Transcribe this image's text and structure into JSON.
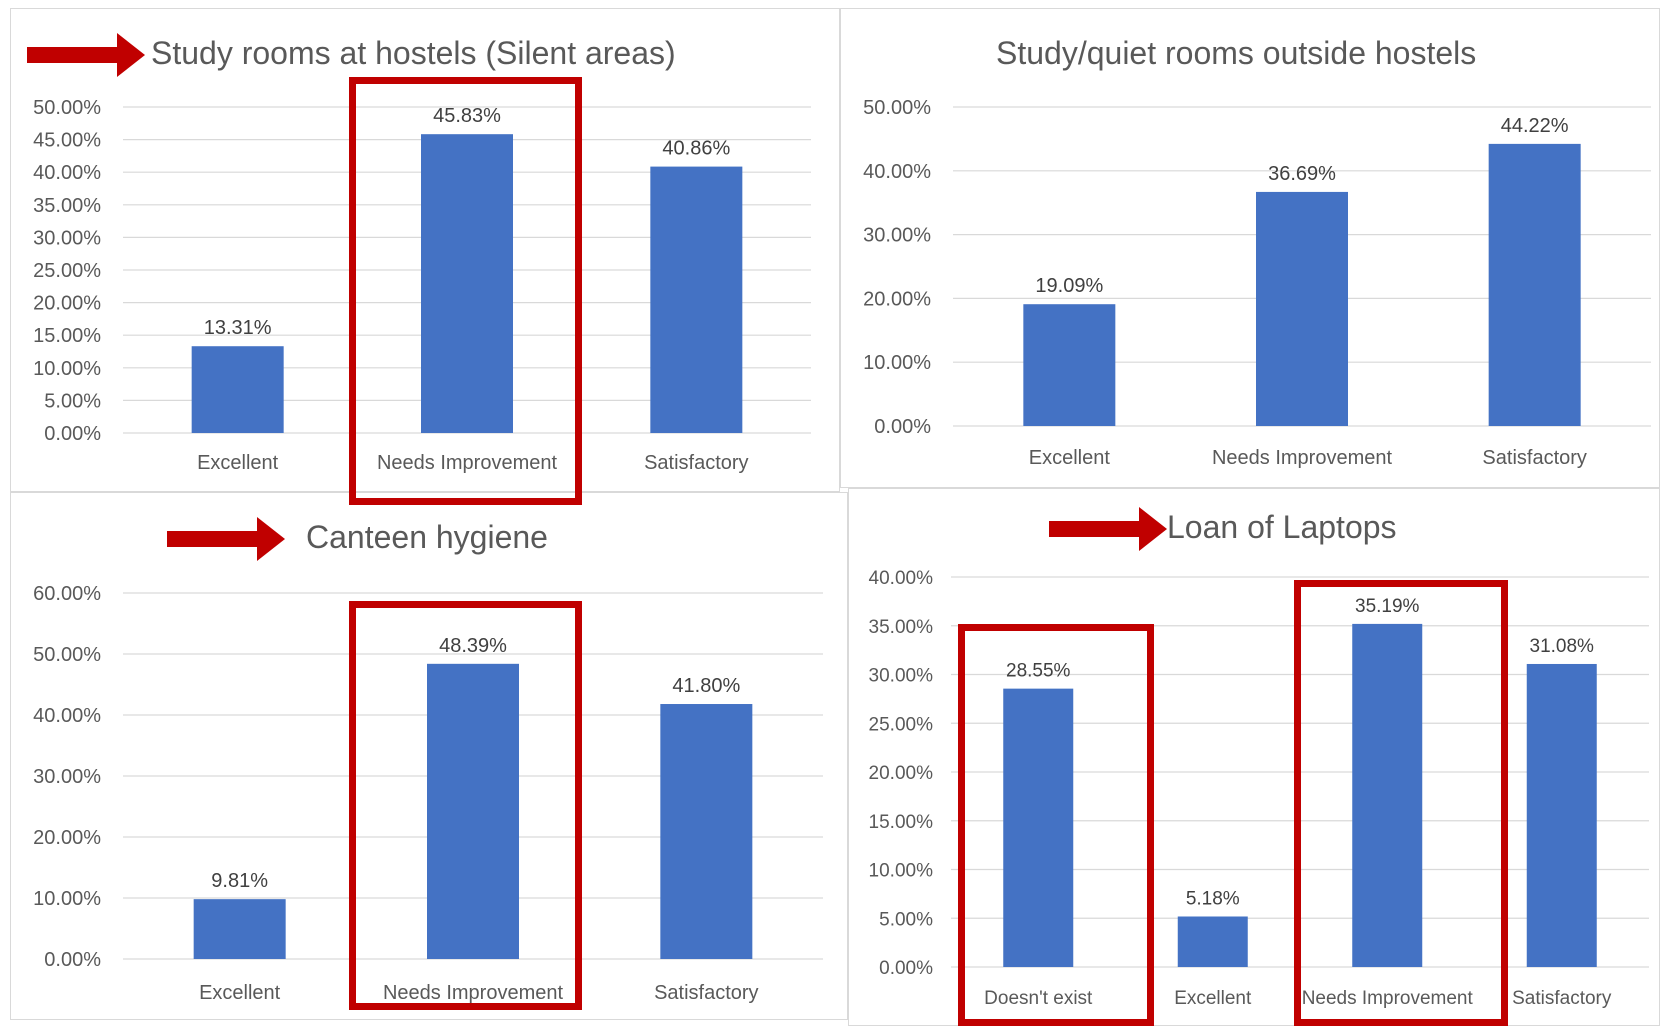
{
  "colors": {
    "bar": "#4472c4",
    "grid": "#d9d9d9",
    "text": "#595959",
    "highlight": "#c00000"
  },
  "chart_data": [
    {
      "type": "bar",
      "title": "Study rooms at hostels (Silent areas)",
      "categories": [
        "Excellent",
        "Needs Improvement",
        "Satisfactory"
      ],
      "values": [
        13.31,
        45.83,
        40.86
      ],
      "value_labels": [
        "13.31%",
        "45.83%",
        "40.86%"
      ],
      "ylim": [
        0,
        50
      ],
      "yticks": [
        "0.00%",
        "5.00%",
        "10.00%",
        "15.00%",
        "20.00%",
        "25.00%",
        "30.00%",
        "35.00%",
        "40.00%",
        "45.00%",
        "50.00%"
      ],
      "grid": true,
      "highlighted": [
        "Needs Improvement"
      ],
      "title_arrow": true
    },
    {
      "type": "bar",
      "title": "Study/quiet rooms outside hostels",
      "categories": [
        "Excellent",
        "Needs Improvement",
        "Satisfactory"
      ],
      "values": [
        19.09,
        36.69,
        44.22
      ],
      "value_labels": [
        "19.09%",
        "36.69%",
        "44.22%"
      ],
      "ylim": [
        0,
        50
      ],
      "yticks": [
        "0.00%",
        "10.00%",
        "20.00%",
        "30.00%",
        "40.00%",
        "50.00%"
      ],
      "grid": true,
      "highlighted": [],
      "title_arrow": false
    },
    {
      "type": "bar",
      "title": "Canteen hygiene",
      "categories": [
        "Excellent",
        "Needs Improvement",
        "Satisfactory"
      ],
      "values": [
        9.81,
        48.39,
        41.8
      ],
      "value_labels": [
        "9.81%",
        "48.39%",
        "41.80%"
      ],
      "ylim": [
        0,
        60
      ],
      "yticks": [
        "0.00%",
        "10.00%",
        "20.00%",
        "30.00%",
        "40.00%",
        "50.00%",
        "60.00%"
      ],
      "grid": true,
      "highlighted": [
        "Needs Improvement"
      ],
      "title_arrow": true
    },
    {
      "type": "bar",
      "title": "Loan of Laptops",
      "categories": [
        "Doesn't exist",
        "Excellent",
        "Needs Improvement",
        "Satisfactory"
      ],
      "values": [
        28.55,
        5.18,
        35.19,
        31.08
      ],
      "value_labels": [
        "28.55%",
        "5.18%",
        "35.19%",
        "31.08%"
      ],
      "ylim": [
        0,
        40
      ],
      "yticks": [
        "0.00%",
        "5.00%",
        "10.00%",
        "15.00%",
        "20.00%",
        "25.00%",
        "30.00%",
        "35.00%",
        "40.00%"
      ],
      "grid": true,
      "highlighted": [
        "Doesn't exist",
        "Needs Improvement"
      ],
      "title_arrow": true
    }
  ]
}
